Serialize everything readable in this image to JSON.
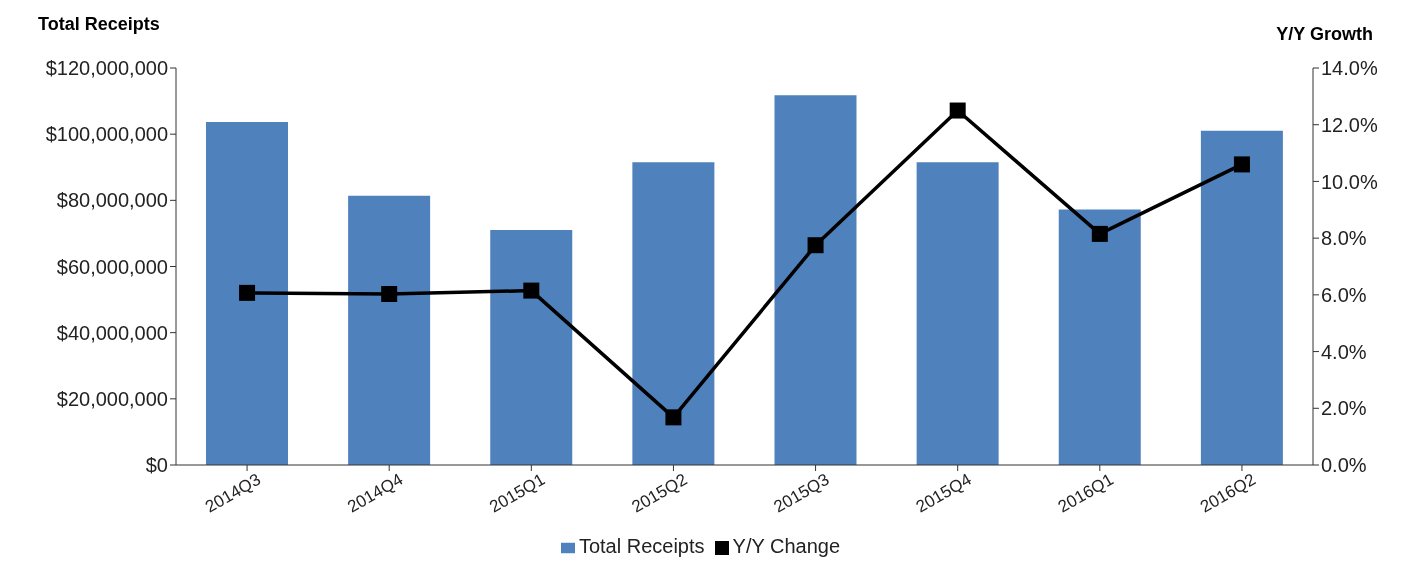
{
  "chart_data": {
    "type": "bar",
    "ylabel": "Total Receipts",
    "y2label": "Y/Y Growth",
    "categories": [
      "2014Q3",
      "2014Q4",
      "2015Q1",
      "2015Q2",
      "2015Q3",
      "2015Q4",
      "2016Q1",
      "2016Q2"
    ],
    "series": [
      {
        "name": "Total Receipts",
        "color": "#4f81bd",
        "values": [
          103700000,
          81400000,
          71000000,
          91500000,
          111800000,
          91500000,
          77200000,
          101000000
        ]
      },
      {
        "name": "Y/Y Change",
        "type": "line",
        "axis": "y2",
        "color": "#000000",
        "marker": "square",
        "values": [
          6.07,
          6.03,
          6.15,
          1.68,
          7.75,
          12.5,
          8.15,
          10.6
        ]
      }
    ],
    "ylim": [
      0,
      120000000
    ],
    "yticks": [
      {
        "value": 0,
        "label": "$0"
      },
      {
        "value": 20000000,
        "label": "$20,000,000"
      },
      {
        "value": 40000000,
        "label": "$40,000,000"
      },
      {
        "value": 60000000,
        "label": "$60,000,000"
      },
      {
        "value": 80000000,
        "label": "$80,000,000"
      },
      {
        "value": 100000000,
        "label": "$100,000,000"
      },
      {
        "value": 120000000,
        "label": "$120,000,000"
      }
    ],
    "y2lim": [
      0,
      14
    ],
    "y2ticks": [
      {
        "value": 0,
        "label": "0.0%"
      },
      {
        "value": 2,
        "label": "2.0%"
      },
      {
        "value": 4,
        "label": "4.0%"
      },
      {
        "value": 6,
        "label": "6.0%"
      },
      {
        "value": 8,
        "label": "8.0%"
      },
      {
        "value": 10,
        "label": "10.0%"
      },
      {
        "value": 12,
        "label": "12.0%"
      },
      {
        "value": 14,
        "label": "14.0%"
      }
    ],
    "legend": "bottom",
    "grid": false
  }
}
